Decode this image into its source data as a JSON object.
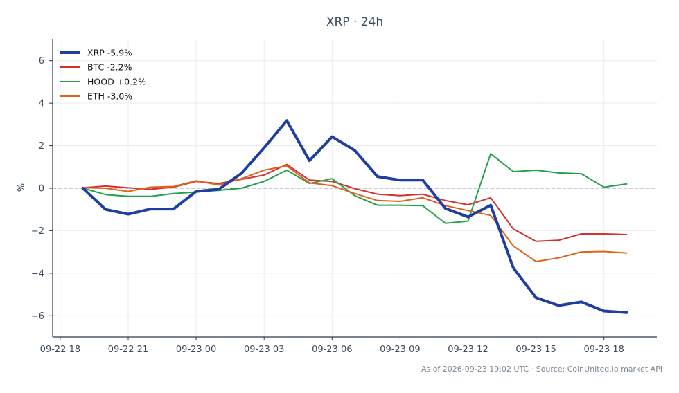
{
  "chart_data": {
    "type": "line",
    "title": "XRP · 24h",
    "xlabel": "",
    "ylabel": "%",
    "ylim": [
      -7,
      7
    ],
    "xlim": [
      "2026-09-22 17:40",
      "2026-09-23 20:20"
    ],
    "x_ticks": [
      {
        "t": "2026-09-22 18:00",
        "label": "09-22 18"
      },
      {
        "t": "2026-09-22 21:00",
        "label": "09-22 21"
      },
      {
        "t": "2026-09-23 00:00",
        "label": "09-23 00"
      },
      {
        "t": "2026-09-23 03:00",
        "label": "09-23 03"
      },
      {
        "t": "2026-09-23 06:00",
        "label": "09-23 06"
      },
      {
        "t": "2026-09-23 09:00",
        "label": "09-23 09"
      },
      {
        "t": "2026-09-23 12:00",
        "label": "09-23 12"
      },
      {
        "t": "2026-09-23 15:00",
        "label": "09-23 15"
      },
      {
        "t": "2026-09-23 18:00",
        "label": "09-23 18"
      }
    ],
    "y_ticks": [
      6,
      4,
      2,
      0,
      -2,
      -4,
      -6
    ],
    "reference_line": {
      "y": 0,
      "style": "dashed"
    },
    "grid": true,
    "legend_position": "top-left",
    "x": [
      "2026-09-22 19:00",
      "2026-09-22 20:00",
      "2026-09-22 21:00",
      "2026-09-22 22:00",
      "2026-09-22 23:00",
      "2026-09-23 00:00",
      "2026-09-23 01:00",
      "2026-09-23 02:00",
      "2026-09-23 03:00",
      "2026-09-23 04:00",
      "2026-09-23 05:00",
      "2026-09-23 06:00",
      "2026-09-23 07:00",
      "2026-09-23 08:00",
      "2026-09-23 09:00",
      "2026-09-23 10:00",
      "2026-09-23 11:00",
      "2026-09-23 12:00",
      "2026-09-23 13:00",
      "2026-09-23 14:00",
      "2026-09-23 15:00",
      "2026-09-23 16:00",
      "2026-09-23 17:00",
      "2026-09-23 18:00",
      "2026-09-23 19:00"
    ],
    "series": [
      {
        "name": "XRP -5.9%",
        "color": "#1f3fa0",
        "width": 4,
        "values": [
          0.0,
          -1.0,
          -1.22,
          -0.98,
          -0.98,
          -0.15,
          -0.05,
          0.7,
          1.9,
          3.18,
          1.3,
          2.42,
          1.78,
          0.55,
          0.38,
          0.38,
          -0.95,
          -1.35,
          -0.8,
          -3.75,
          -5.15,
          -5.52,
          -5.35,
          -5.78,
          -5.85
        ]
      },
      {
        "name": "BTC -2.2%",
        "color": "#d1322e",
        "width": 2,
        "values": [
          0.02,
          0.1,
          0.02,
          -0.05,
          0.05,
          0.32,
          0.22,
          0.42,
          0.62,
          1.12,
          0.38,
          0.32,
          -0.02,
          -0.28,
          -0.35,
          -0.28,
          -0.58,
          -0.78,
          -0.45,
          -1.92,
          -2.5,
          -2.45,
          -2.15,
          -2.15,
          -2.18
        ]
      },
      {
        "name": "HOOD +0.2%",
        "color": "#23a04a",
        "width": 2,
        "values": [
          0.0,
          -0.3,
          -0.38,
          -0.38,
          -0.25,
          -0.18,
          -0.1,
          0.0,
          0.32,
          0.85,
          0.22,
          0.45,
          -0.35,
          -0.8,
          -0.8,
          -0.82,
          -1.65,
          -1.55,
          1.62,
          0.78,
          0.85,
          0.72,
          0.68,
          0.05,
          0.2
        ]
      },
      {
        "name": "ETH -3.0%",
        "color": "#e0621a",
        "width": 2,
        "values": [
          0.02,
          0.0,
          -0.15,
          0.05,
          0.08,
          0.35,
          0.15,
          0.45,
          0.85,
          1.05,
          0.25,
          0.12,
          -0.25,
          -0.58,
          -0.62,
          -0.45,
          -0.82,
          -1.05,
          -1.28,
          -2.72,
          -3.45,
          -3.28,
          -3.0,
          -2.98,
          -3.05
        ]
      }
    ]
  },
  "footer_text": "As of 2026-09-23 19:02 UTC · Source: CoinUnited.io market API"
}
